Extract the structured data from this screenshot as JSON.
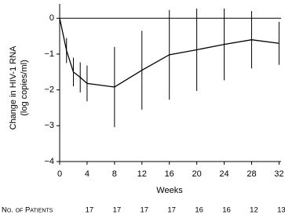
{
  "chart_data": {
    "type": "line",
    "ylabel": [
      "Change in HIV-1 RNA",
      "(log copies/ml)"
    ],
    "xlabel": "Weeks",
    "x": [
      0,
      1,
      2,
      3,
      4,
      8,
      12,
      16,
      20,
      24,
      28,
      32
    ],
    "series": [
      {
        "color": "#000000",
        "values": [
          0,
          -0.9,
          -1.5,
          -1.65,
          -1.82,
          -1.92,
          -1.45,
          -1.02,
          -0.88,
          -0.73,
          -0.6,
          -0.7
        ],
        "errors": [
          null,
          0.35,
          0.4,
          0.42,
          0.5,
          1.12,
          1.1,
          1.25,
          1.15,
          1.0,
          0.8,
          0.6
        ]
      }
    ],
    "xlim": [
      0,
      32.3
    ],
    "xticks": [
      0,
      4,
      8,
      12,
      16,
      20,
      24,
      28,
      32
    ],
    "ylim": [
      -4,
      0.4
    ],
    "yticks": [
      {
        "value": -4,
        "label": "−4"
      },
      {
        "value": -3,
        "label": "−3"
      },
      {
        "value": -2,
        "label": "−2"
      },
      {
        "value": -1,
        "label": "−1"
      },
      0
    ],
    "reference_line": 0,
    "patients": {
      "label": "No. of Patients",
      "counts": [
        17,
        17,
        17,
        17,
        16,
        16,
        12,
        13
      ]
    }
  }
}
